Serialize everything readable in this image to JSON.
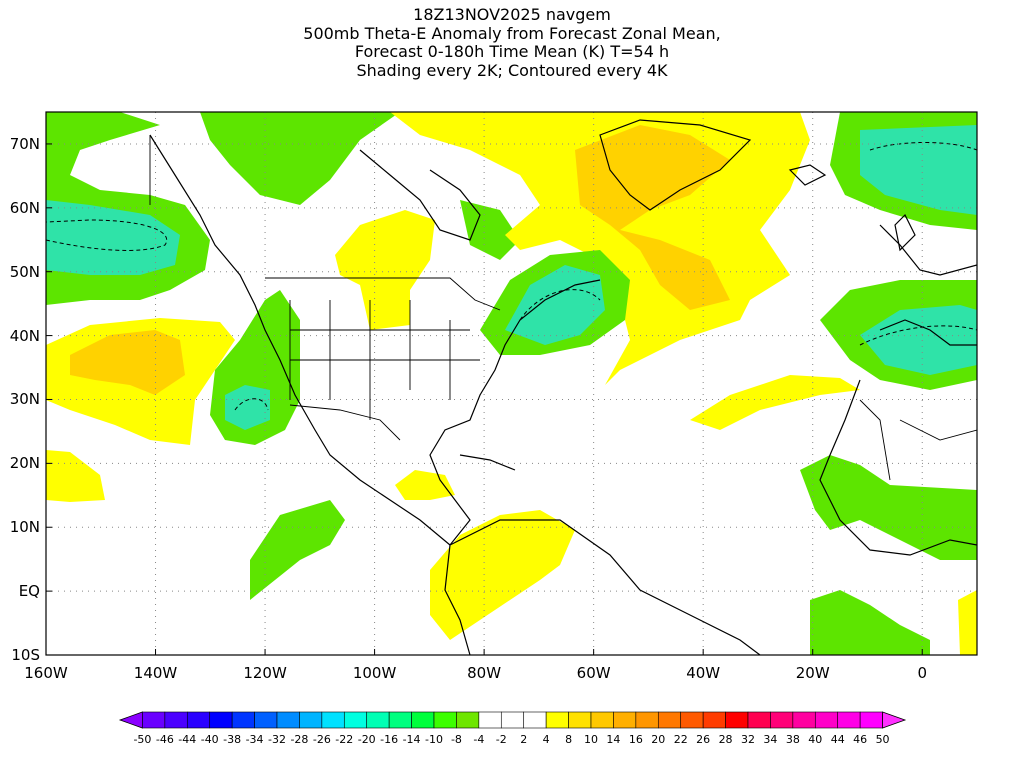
{
  "title": {
    "lines": [
      "18Z13NOV2025 navgem",
      "500mb Theta-E Anomaly from Forecast Zonal Mean,",
      "Forecast 0-180h Time Mean (K) T=54 h",
      "Shading every 2K; Contoured every 4K"
    ]
  },
  "map": {
    "lat_labels": [
      "70N",
      "60N",
      "50N",
      "40N",
      "30N",
      "20N",
      "10N",
      "EQ",
      "10S"
    ],
    "lat_values": [
      70,
      60,
      50,
      40,
      30,
      20,
      10,
      0,
      -10
    ],
    "lon_labels": [
      "160W",
      "140W",
      "120W",
      "100W",
      "80W",
      "60W",
      "40W",
      "20W",
      "0"
    ],
    "lon_values": [
      -160,
      -140,
      -120,
      -100,
      -80,
      -60,
      -40,
      -20,
      0
    ],
    "lon_range": [
      -160,
      10
    ],
    "lat_range": [
      -10,
      75
    ],
    "gridlines": "dotted"
  },
  "colorbar": {
    "labels": [
      "-50",
      "-46",
      "-44",
      "-40",
      "-38",
      "-34",
      "-32",
      "-28",
      "-26",
      "-22",
      "-20",
      "-16",
      "-14",
      "-10",
      "-8",
      "-4",
      "-2",
      "2",
      "4",
      "8",
      "10",
      "14",
      "16",
      "20",
      "22",
      "26",
      "28",
      "32",
      "34",
      "38",
      "40",
      "44",
      "46",
      "50"
    ],
    "colors": [
      "#8a00ff",
      "#6a00ff",
      "#4b00ff",
      "#2a00ff",
      "#0000ff",
      "#0035ff",
      "#0060ff",
      "#008cff",
      "#00b4ff",
      "#00e1ff",
      "#00ffe0",
      "#00ffb4",
      "#00ff7f",
      "#00ff3c",
      "#3cff00",
      "#6ee600",
      "#ffffff",
      "#ffffff",
      "#ffffff",
      "#ffff00",
      "#ffe100",
      "#ffc800",
      "#ffaf00",
      "#ff9600",
      "#ff7800",
      "#ff5a00",
      "#ff3c00",
      "#ff0000",
      "#ff0050",
      "#ff0078",
      "#ff00a0",
      "#ff00c8",
      "#ff00e6",
      "#ff00ff",
      "#ff30ff"
    ]
  }
}
